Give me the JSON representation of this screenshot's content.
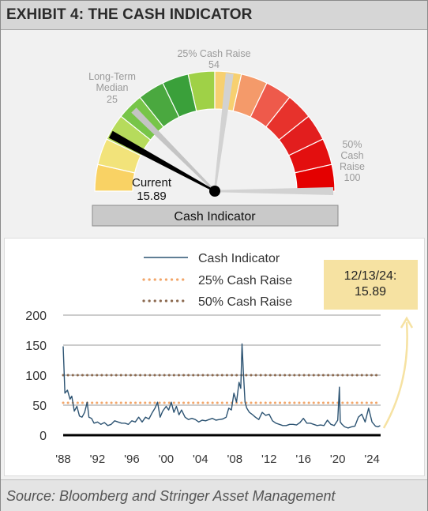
{
  "exhibit": {
    "title": "EXHIBIT 4: THE CASH INDICATOR",
    "source": "Source: Bloomberg and Stringer Asset Management"
  },
  "gauge": {
    "caption": "Cash Indicator",
    "range": [
      0,
      100
    ],
    "current": {
      "label": "Current",
      "value": "15.89",
      "numeric": 15.89
    },
    "median": {
      "line1": "Long-Term",
      "line2": "Median",
      "value": "25",
      "numeric": 25
    },
    "raise25": {
      "label": "25% Cash Raise",
      "value": "54",
      "numeric": 54
    },
    "raise50": {
      "line1": "50%",
      "line2": "Cash",
      "line3": "Raise",
      "value": "100",
      "numeric": 100
    },
    "segment_colors": [
      "#f9d264",
      "#f2e37a",
      "#b6db5c",
      "#77c548",
      "#4aa83f",
      "#3aa03a",
      "#9fd147",
      "#f7d070",
      "#f49a6a",
      "#ee5a4b",
      "#e7322c",
      "#e21e1e",
      "#e30f0f",
      "#e40000"
    ]
  },
  "chart_data": {
    "type": "line",
    "xlim": [
      1988,
      2025
    ],
    "ylim": [
      0,
      200
    ],
    "yticks": [
      "0",
      "50",
      "100",
      "150",
      "200"
    ],
    "xticks": [
      "'88",
      "'92",
      "'96",
      "'00",
      "'04",
      "'08",
      "'12",
      "'16",
      "'20",
      "'24"
    ],
    "xtick_values": [
      1988,
      1992,
      1996,
      2000,
      2004,
      2008,
      2012,
      2016,
      2020,
      2024
    ],
    "colors": {
      "indicator": "#2c5372",
      "raise25": "#f2a66a",
      "raise50": "#8c6a50",
      "annotation_fill": "#f6e2a2",
      "arrow": "#f6e2a2"
    },
    "series": [
      {
        "name": "Cash Indicator",
        "style": "line",
        "x": [
          1988.0,
          1988.2,
          1988.5,
          1988.8,
          1989.0,
          1989.3,
          1989.6,
          1989.9,
          1990.2,
          1990.5,
          1990.8,
          1991.0,
          1991.3,
          1991.6,
          1992.0,
          1992.4,
          1992.8,
          1993.2,
          1993.6,
          1994.0,
          1994.4,
          1994.8,
          1995.2,
          1995.6,
          1996.0,
          1996.4,
          1996.8,
          1997.2,
          1997.6,
          1998.0,
          1998.4,
          1998.7,
          1999.0,
          1999.3,
          1999.6,
          2000.0,
          2000.3,
          2000.6,
          2000.9,
          2001.2,
          2001.5,
          2001.8,
          2002.2,
          2002.6,
          2003.0,
          2003.4,
          2003.8,
          2004.2,
          2004.6,
          2005.0,
          2005.4,
          2005.8,
          2006.2,
          2006.6,
          2007.0,
          2007.3,
          2007.6,
          2007.9,
          2008.2,
          2008.5,
          2008.7,
          2008.85,
          2009.0,
          2009.2,
          2009.4,
          2009.7,
          2010.0,
          2010.4,
          2010.8,
          2011.2,
          2011.6,
          2012.0,
          2012.4,
          2012.8,
          2013.2,
          2013.6,
          2014.0,
          2014.4,
          2014.8,
          2015.2,
          2015.6,
          2016.0,
          2016.4,
          2016.8,
          2017.2,
          2017.6,
          2018.0,
          2018.4,
          2018.8,
          2019.2,
          2019.6,
          2020.0,
          2020.2,
          2020.3,
          2020.5,
          2020.8,
          2021.2,
          2021.6,
          2022.0,
          2022.4,
          2022.8,
          2023.2,
          2023.6,
          2024.0,
          2024.4,
          2024.7,
          2024.95
        ],
        "values": [
          148,
          70,
          75,
          60,
          65,
          40,
          48,
          32,
          30,
          38,
          55,
          30,
          28,
          20,
          22,
          18,
          21,
          16,
          18,
          24,
          22,
          20,
          20,
          18,
          24,
          22,
          30,
          22,
          30,
          27,
          38,
          45,
          55,
          30,
          40,
          48,
          42,
          55,
          38,
          48,
          34,
          42,
          30,
          26,
          28,
          26,
          22,
          25,
          24,
          26,
          28,
          25,
          26,
          27,
          30,
          45,
          42,
          70,
          55,
          88,
          78,
          152,
          105,
          55,
          45,
          38,
          35,
          30,
          26,
          38,
          33,
          35,
          24,
          20,
          18,
          16,
          16,
          18,
          18,
          17,
          21,
          28,
          20,
          20,
          18,
          16,
          17,
          16,
          25,
          18,
          16,
          25,
          80,
          22,
          18,
          14,
          12,
          14,
          15,
          30,
          35,
          22,
          45,
          22,
          15,
          14,
          15.89
        ]
      },
      {
        "name": "25% Cash Raise",
        "style": "dotted",
        "value": 54
      },
      {
        "name": "50% Cash Raise",
        "style": "dotted",
        "value": 100
      }
    ],
    "annotation": {
      "line1": "12/13/24:",
      "line2": "15.89"
    }
  }
}
